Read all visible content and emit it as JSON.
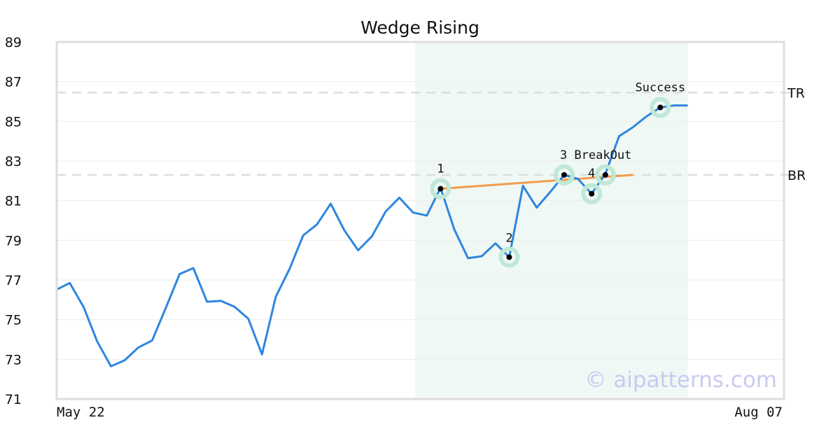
{
  "chart_data": {
    "type": "line",
    "title": "Wedge Rising",
    "xlabel": "",
    "ylabel": "",
    "ylim": [
      71,
      89
    ],
    "yticks": [
      71,
      73,
      75,
      77,
      79,
      81,
      83,
      85,
      87,
      89
    ],
    "x_tick_labels": [
      "May 22",
      "Aug 07"
    ],
    "grid": "horizontal",
    "colors": {
      "price": "#2e86de",
      "trend": "#f39c4a",
      "highlight": "#e3f3ec",
      "marker_halo": "#bfe8d6",
      "reference": "#dddddd",
      "watermark": "#c9c9f2"
    },
    "series": [
      {
        "values": [
          76.5,
          76.85,
          75.65,
          73.9,
          72.65,
          72.95,
          73.6,
          73.95,
          75.6,
          77.3,
          77.6,
          75.9,
          75.95,
          75.65,
          75.05,
          73.25,
          76.15,
          77.55,
          79.25,
          79.8,
          80.85,
          79.5,
          78.5,
          79.2,
          80.45,
          81.15,
          80.4,
          80.25,
          81.65,
          79.55,
          78.1,
          78.2,
          78.85,
          78.15,
          81.75,
          80.65,
          81.45,
          82.3,
          82.1,
          81.35,
          82.35,
          84.25,
          84.7,
          85.25,
          85.7,
          85.8,
          85.8
        ]
      }
    ],
    "highlight_range": [
      26,
      46
    ],
    "trend_line": {
      "from": [
        28,
        81.6
      ],
      "to": [
        41,
        82.3
      ]
    },
    "reference_lines": [
      {
        "label": "TR",
        "value": 86.45
      },
      {
        "label": "BR",
        "value": 82.3
      }
    ],
    "annotations": [
      {
        "label": "1",
        "x": 28,
        "y": 81.6
      },
      {
        "label": "2",
        "x": 33,
        "y": 78.15
      },
      {
        "label": "3 BreakOut",
        "x": 37,
        "y": 82.3
      },
      {
        "label": "4",
        "x": 39,
        "y": 81.35
      },
      {
        "label": "",
        "x": 40,
        "y": 82.3
      },
      {
        "label": "Success",
        "x": 44,
        "y": 85.7
      }
    ],
    "watermark": "© aipatterns.com"
  }
}
